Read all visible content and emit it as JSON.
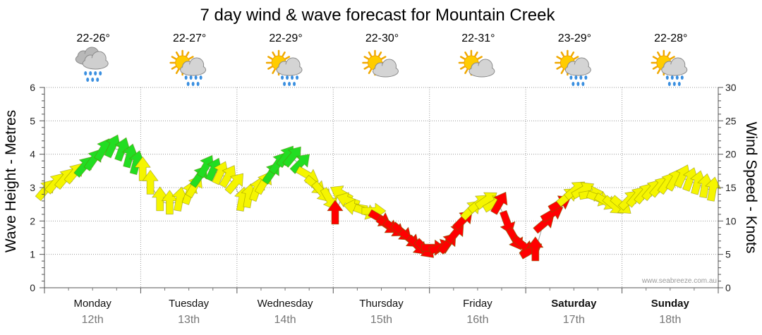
{
  "chart_data": {
    "type": "line",
    "title": "7 day wind & wave forecast for Mountain Creek",
    "ylabel_left": "Wave Height - Metres",
    "ylabel_right": "Wind Speed - Knots",
    "ylim_left": [
      0,
      6
    ],
    "ylim_right": [
      0,
      30
    ],
    "left_ticks": [
      "0",
      "1",
      "2",
      "3",
      "4",
      "5",
      "6"
    ],
    "right_ticks": [
      "0",
      "5",
      "10",
      "15",
      "20",
      "25",
      "30"
    ],
    "grid": true,
    "credit": "www.seabreeze.com.au",
    "days": [
      {
        "day": "Monday",
        "date": "12th",
        "temp": "22-26°",
        "icon": "rain-cloud-icon",
        "bold": false
      },
      {
        "day": "Tuesday",
        "date": "13th",
        "temp": "22-27°",
        "icon": "sun-cloud-rain-icon",
        "bold": false
      },
      {
        "day": "Wednesday",
        "date": "14th",
        "temp": "22-29°",
        "icon": "sun-cloud-rain-icon",
        "bold": false
      },
      {
        "day": "Thursday",
        "date": "15th",
        "temp": "22-30°",
        "icon": "sun-cloud-icon",
        "bold": false
      },
      {
        "day": "Friday",
        "date": "16th",
        "temp": "22-31°",
        "icon": "sun-cloud-icon",
        "bold": false
      },
      {
        "day": "Saturday",
        "date": "17th",
        "temp": "23-29°",
        "icon": "sun-cloud-rain-icon",
        "bold": true
      },
      {
        "day": "Sunday",
        "date": "18th",
        "temp": "22-28°",
        "icon": "sun-cloud-rain-icon",
        "bold": true
      }
    ],
    "legend_colors": {
      "yellow": "#f5f500",
      "green": "#22dd22",
      "red": "#ff0000"
    },
    "series": [
      {
        "units": "knots",
        "points": [
          {
            "t": 0.0,
            "v": 14.5,
            "dir": 40,
            "c": "yellow"
          },
          {
            "t": 0.1,
            "v": 15.5,
            "dir": 40,
            "c": "yellow"
          },
          {
            "t": 0.2,
            "v": 16.2,
            "dir": 40,
            "c": "yellow"
          },
          {
            "t": 0.3,
            "v": 17.0,
            "dir": 40,
            "c": "yellow"
          },
          {
            "t": 0.4,
            "v": 18.0,
            "dir": 40,
            "c": "green"
          },
          {
            "t": 0.5,
            "v": 19.0,
            "dir": 35,
            "c": "green"
          },
          {
            "t": 0.6,
            "v": 20.5,
            "dir": 30,
            "c": "green"
          },
          {
            "t": 0.7,
            "v": 21.0,
            "dir": 25,
            "c": "green"
          },
          {
            "t": 0.8,
            "v": 20.5,
            "dir": 20,
            "c": "green"
          },
          {
            "t": 0.88,
            "v": 19.5,
            "dir": 15,
            "c": "green"
          },
          {
            "t": 0.95,
            "v": 18.5,
            "dir": 15,
            "c": "green"
          },
          {
            "t": 1.02,
            "v": 17.5,
            "dir": 0,
            "c": "yellow"
          },
          {
            "t": 1.1,
            "v": 15.5,
            "dir": 0,
            "c": "yellow"
          },
          {
            "t": 1.2,
            "v": 13.0,
            "dir": 0,
            "c": "yellow"
          },
          {
            "t": 1.3,
            "v": 12.5,
            "dir": 0,
            "c": "yellow"
          },
          {
            "t": 1.4,
            "v": 13.0,
            "dir": 10,
            "c": "yellow"
          },
          {
            "t": 1.5,
            "v": 14.0,
            "dir": 20,
            "c": "yellow"
          },
          {
            "t": 1.55,
            "v": 15.0,
            "dir": 30,
            "c": "yellow"
          },
          {
            "t": 1.6,
            "v": 16.5,
            "dir": 35,
            "c": "green"
          },
          {
            "t": 1.67,
            "v": 18.0,
            "dir": 30,
            "c": "green"
          },
          {
            "t": 1.75,
            "v": 17.5,
            "dir": 25,
            "c": "green"
          },
          {
            "t": 1.82,
            "v": 17.0,
            "dir": 25,
            "c": "yellow"
          },
          {
            "t": 1.9,
            "v": 16.5,
            "dir": 30,
            "c": "yellow"
          },
          {
            "t": 1.97,
            "v": 15.5,
            "dir": 40,
            "c": "yellow"
          },
          {
            "t": 2.05,
            "v": 13.0,
            "dir": 10,
            "c": "yellow"
          },
          {
            "t": 2.12,
            "v": 13.5,
            "dir": 10,
            "c": "yellow"
          },
          {
            "t": 2.2,
            "v": 14.5,
            "dir": 20,
            "c": "yellow"
          },
          {
            "t": 2.27,
            "v": 15.5,
            "dir": 30,
            "c": "yellow"
          },
          {
            "t": 2.35,
            "v": 17.0,
            "dir": 35,
            "c": "green"
          },
          {
            "t": 2.42,
            "v": 18.5,
            "dir": 35,
            "c": "green"
          },
          {
            "t": 2.5,
            "v": 19.5,
            "dir": 35,
            "c": "green"
          },
          {
            "t": 2.57,
            "v": 19.5,
            "dir": 40,
            "c": "green"
          },
          {
            "t": 2.65,
            "v": 18.5,
            "dir": 45,
            "c": "green"
          },
          {
            "t": 2.72,
            "v": 17.0,
            "dir": 120,
            "c": "yellow"
          },
          {
            "t": 2.8,
            "v": 15.5,
            "dir": 130,
            "c": "yellow"
          },
          {
            "t": 2.87,
            "v": 14.5,
            "dir": 140,
            "c": "yellow"
          },
          {
            "t": 2.95,
            "v": 13.5,
            "dir": 150,
            "c": "yellow"
          },
          {
            "t": 3.02,
            "v": 11.0,
            "dir": 0,
            "c": "red"
          },
          {
            "t": 3.1,
            "v": 14.0,
            "dir": 300,
            "c": "yellow"
          },
          {
            "t": 3.17,
            "v": 13.0,
            "dir": 290,
            "c": "yellow"
          },
          {
            "t": 3.25,
            "v": 12.0,
            "dir": 280,
            "c": "yellow"
          },
          {
            "t": 3.32,
            "v": 11.5,
            "dir": 110,
            "c": "yellow"
          },
          {
            "t": 3.4,
            "v": 11.5,
            "dir": 90,
            "c": "yellow"
          },
          {
            "t": 3.47,
            "v": 10.5,
            "dir": 120,
            "c": "red"
          },
          {
            "t": 3.55,
            "v": 9.5,
            "dir": 125,
            "c": "red"
          },
          {
            "t": 3.62,
            "v": 9.0,
            "dir": 125,
            "c": "red"
          },
          {
            "t": 3.7,
            "v": 8.5,
            "dir": 130,
            "c": "red"
          },
          {
            "t": 3.78,
            "v": 7.5,
            "dir": 130,
            "c": "red"
          },
          {
            "t": 3.86,
            "v": 6.5,
            "dir": 135,
            "c": "red"
          },
          {
            "t": 3.94,
            "v": 6.0,
            "dir": 135,
            "c": "red"
          },
          {
            "t": 4.02,
            "v": 6.0,
            "dir": 90,
            "c": "red"
          },
          {
            "t": 4.1,
            "v": 6.0,
            "dir": 70,
            "c": "red"
          },
          {
            "t": 4.18,
            "v": 6.5,
            "dir": 40,
            "c": "red"
          },
          {
            "t": 4.26,
            "v": 8.0,
            "dir": 40,
            "c": "red"
          },
          {
            "t": 4.34,
            "v": 10.0,
            "dir": 45,
            "c": "red"
          },
          {
            "t": 4.42,
            "v": 11.5,
            "dir": 45,
            "c": "yellow"
          },
          {
            "t": 4.5,
            "v": 12.5,
            "dir": 50,
            "c": "yellow"
          },
          {
            "t": 4.58,
            "v": 13.0,
            "dir": 55,
            "c": "yellow"
          },
          {
            "t": 4.66,
            "v": 12.5,
            "dir": 60,
            "c": "yellow"
          },
          {
            "t": 4.72,
            "v": 12.5,
            "dir": 30,
            "c": "red"
          },
          {
            "t": 4.8,
            "v": 10.0,
            "dir": 160,
            "c": "red"
          },
          {
            "t": 4.88,
            "v": 7.5,
            "dir": 150,
            "c": "red"
          },
          {
            "t": 4.96,
            "v": 6.5,
            "dir": 130,
            "c": "red"
          },
          {
            "t": 5.04,
            "v": 5.5,
            "dir": 60,
            "c": "red"
          },
          {
            "t": 5.1,
            "v": 5.5,
            "dir": 0,
            "c": "red"
          },
          {
            "t": 5.18,
            "v": 9.5,
            "dir": 50,
            "c": "red"
          },
          {
            "t": 5.26,
            "v": 11.0,
            "dir": 60,
            "c": "red"
          },
          {
            "t": 5.34,
            "v": 12.5,
            "dir": 60,
            "c": "red"
          },
          {
            "t": 5.42,
            "v": 13.5,
            "dir": 50,
            "c": "yellow"
          },
          {
            "t": 5.5,
            "v": 14.5,
            "dir": 50,
            "c": "yellow"
          },
          {
            "t": 5.58,
            "v": 14.5,
            "dir": 60,
            "c": "yellow"
          },
          {
            "t": 5.66,
            "v": 14.0,
            "dir": 80,
            "c": "yellow"
          },
          {
            "t": 5.74,
            "v": 13.5,
            "dir": 110,
            "c": "yellow"
          },
          {
            "t": 5.82,
            "v": 13.0,
            "dir": 120,
            "c": "yellow"
          },
          {
            "t": 5.9,
            "v": 12.5,
            "dir": 130,
            "c": "yellow"
          },
          {
            "t": 5.98,
            "v": 12.5,
            "dir": 130,
            "c": "yellow"
          },
          {
            "t": 6.06,
            "v": 13.0,
            "dir": 45,
            "c": "yellow"
          },
          {
            "t": 6.14,
            "v": 13.5,
            "dir": 40,
            "c": "yellow"
          },
          {
            "t": 6.22,
            "v": 14.0,
            "dir": 40,
            "c": "yellow"
          },
          {
            "t": 6.3,
            "v": 14.5,
            "dir": 40,
            "c": "yellow"
          },
          {
            "t": 6.38,
            "v": 15.0,
            "dir": 40,
            "c": "yellow"
          },
          {
            "t": 6.46,
            "v": 15.5,
            "dir": 35,
            "c": "yellow"
          },
          {
            "t": 6.54,
            "v": 16.0,
            "dir": 30,
            "c": "yellow"
          },
          {
            "t": 6.62,
            "v": 16.5,
            "dir": 25,
            "c": "yellow"
          },
          {
            "t": 6.7,
            "v": 16.0,
            "dir": 20,
            "c": "yellow"
          },
          {
            "t": 6.78,
            "v": 15.5,
            "dir": 15,
            "c": "yellow"
          },
          {
            "t": 6.86,
            "v": 15.0,
            "dir": 10,
            "c": "yellow"
          },
          {
            "t": 6.94,
            "v": 14.5,
            "dir": 10,
            "c": "yellow"
          }
        ]
      }
    ]
  }
}
